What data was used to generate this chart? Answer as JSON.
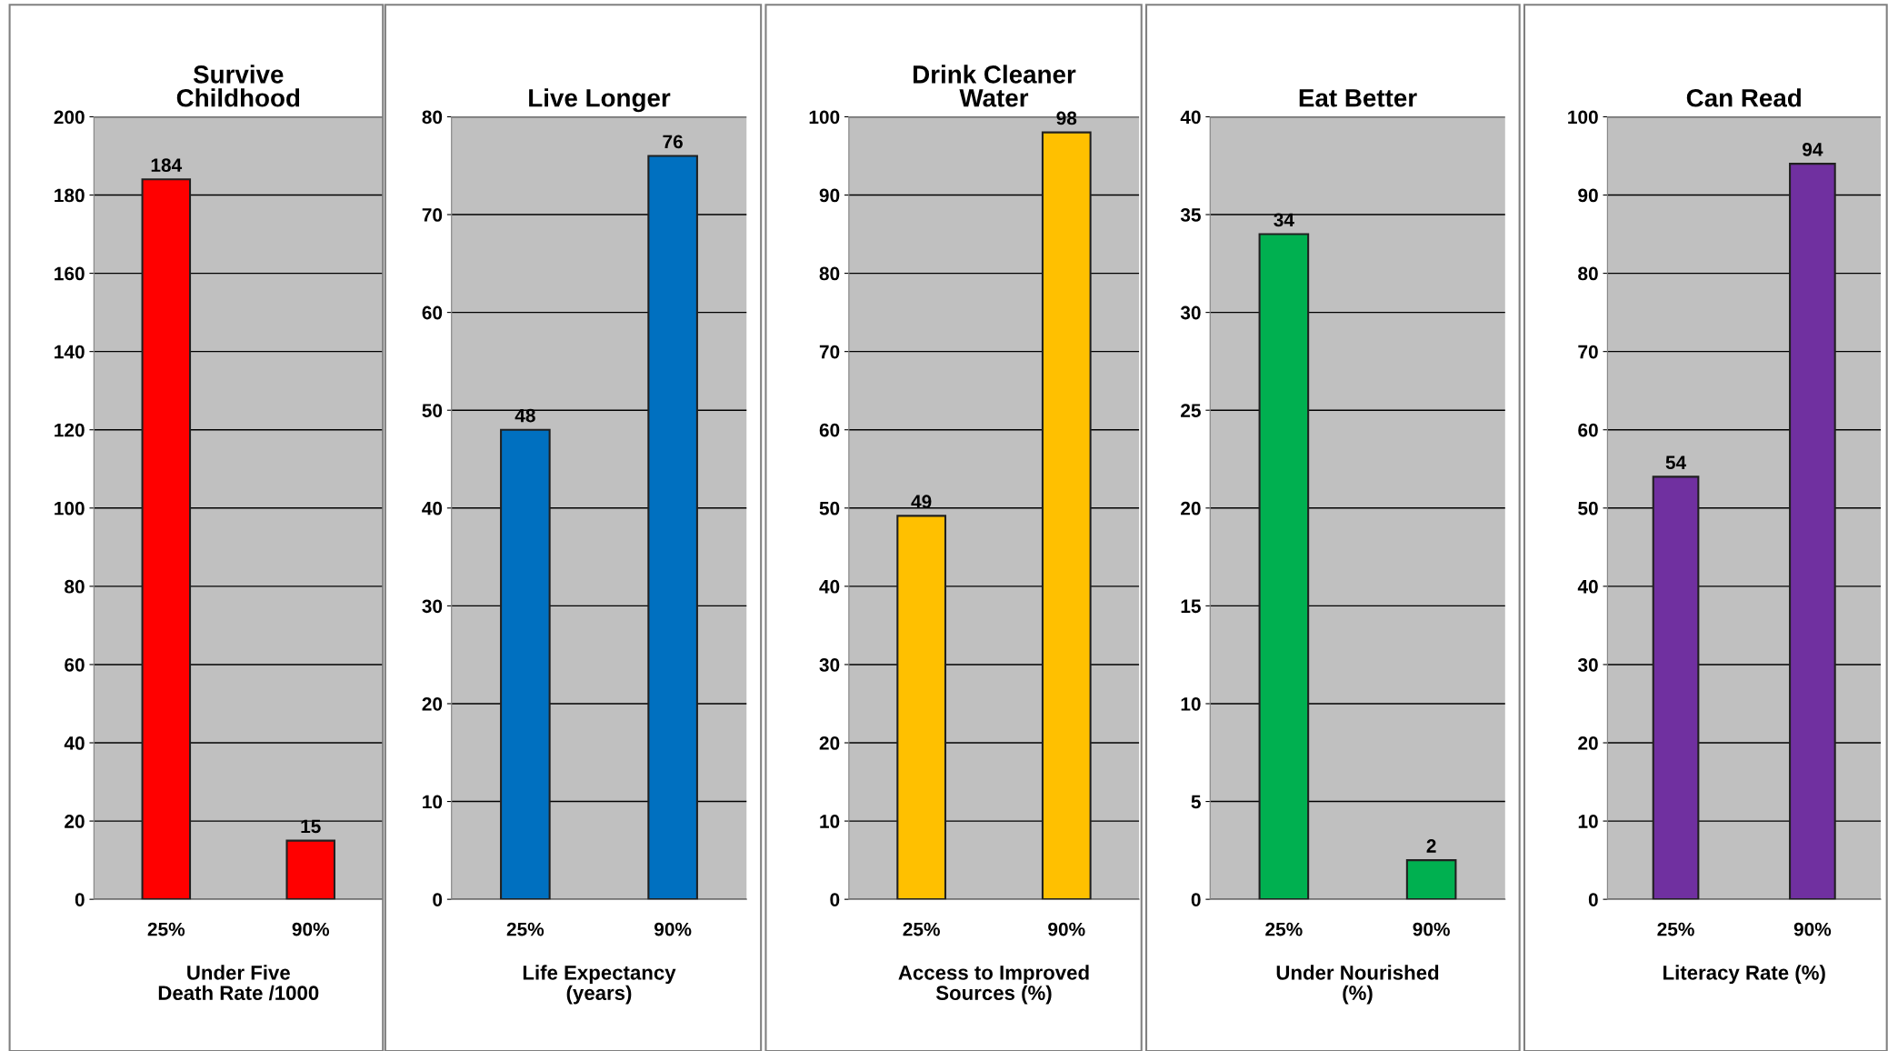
{
  "chart_data": [
    {
      "type": "bar",
      "title": "Survive\nChildhood",
      "xlabel": "Under Five\nDeath Rate /1000",
      "categories": [
        "25%",
        "90%"
      ],
      "values": [
        184,
        15
      ],
      "color": "#ff0000",
      "ylim": [
        0,
        200
      ],
      "yticks": [
        0,
        20,
        40,
        60,
        80,
        100,
        120,
        140,
        160,
        180,
        200
      ],
      "grid": "y",
      "data_labels": true
    },
    {
      "type": "bar",
      "title": "Live Longer",
      "xlabel": "Life Expectancy\n(years)",
      "categories": [
        "25%",
        "90%"
      ],
      "values": [
        48,
        76
      ],
      "color": "#0070c0",
      "ylim": [
        0,
        80
      ],
      "yticks": [
        0,
        10,
        20,
        30,
        40,
        50,
        60,
        70,
        80
      ],
      "grid": "y",
      "data_labels": true
    },
    {
      "type": "bar",
      "title": "Drink Cleaner\nWater",
      "xlabel": "Access to Improved\nSources (%)",
      "categories": [
        "25%",
        "90%"
      ],
      "values": [
        49,
        98
      ],
      "color": "#ffc000",
      "ylim": [
        0,
        100
      ],
      "yticks": [
        0,
        10,
        20,
        30,
        40,
        50,
        60,
        70,
        80,
        90,
        100
      ],
      "grid": "y",
      "data_labels": true
    },
    {
      "type": "bar",
      "title": "Eat Better",
      "xlabel": "Under Nourished\n(%)",
      "categories": [
        "25%",
        "90%"
      ],
      "values": [
        34,
        2
      ],
      "color": "#00b050",
      "ylim": [
        0,
        40
      ],
      "yticks": [
        0,
        5,
        10,
        15,
        20,
        25,
        30,
        35,
        40
      ],
      "grid": "y",
      "data_labels": true
    },
    {
      "type": "bar",
      "title": "Can Read",
      "xlabel": "Literacy Rate (%)",
      "categories": [
        "25%",
        "90%"
      ],
      "values": [
        54,
        94
      ],
      "color": "#7030a0",
      "ylim": [
        0,
        100
      ],
      "yticks": [
        0,
        10,
        20,
        30,
        40,
        50,
        60,
        70,
        80,
        90,
        100
      ],
      "grid": "y",
      "data_labels": true
    }
  ]
}
